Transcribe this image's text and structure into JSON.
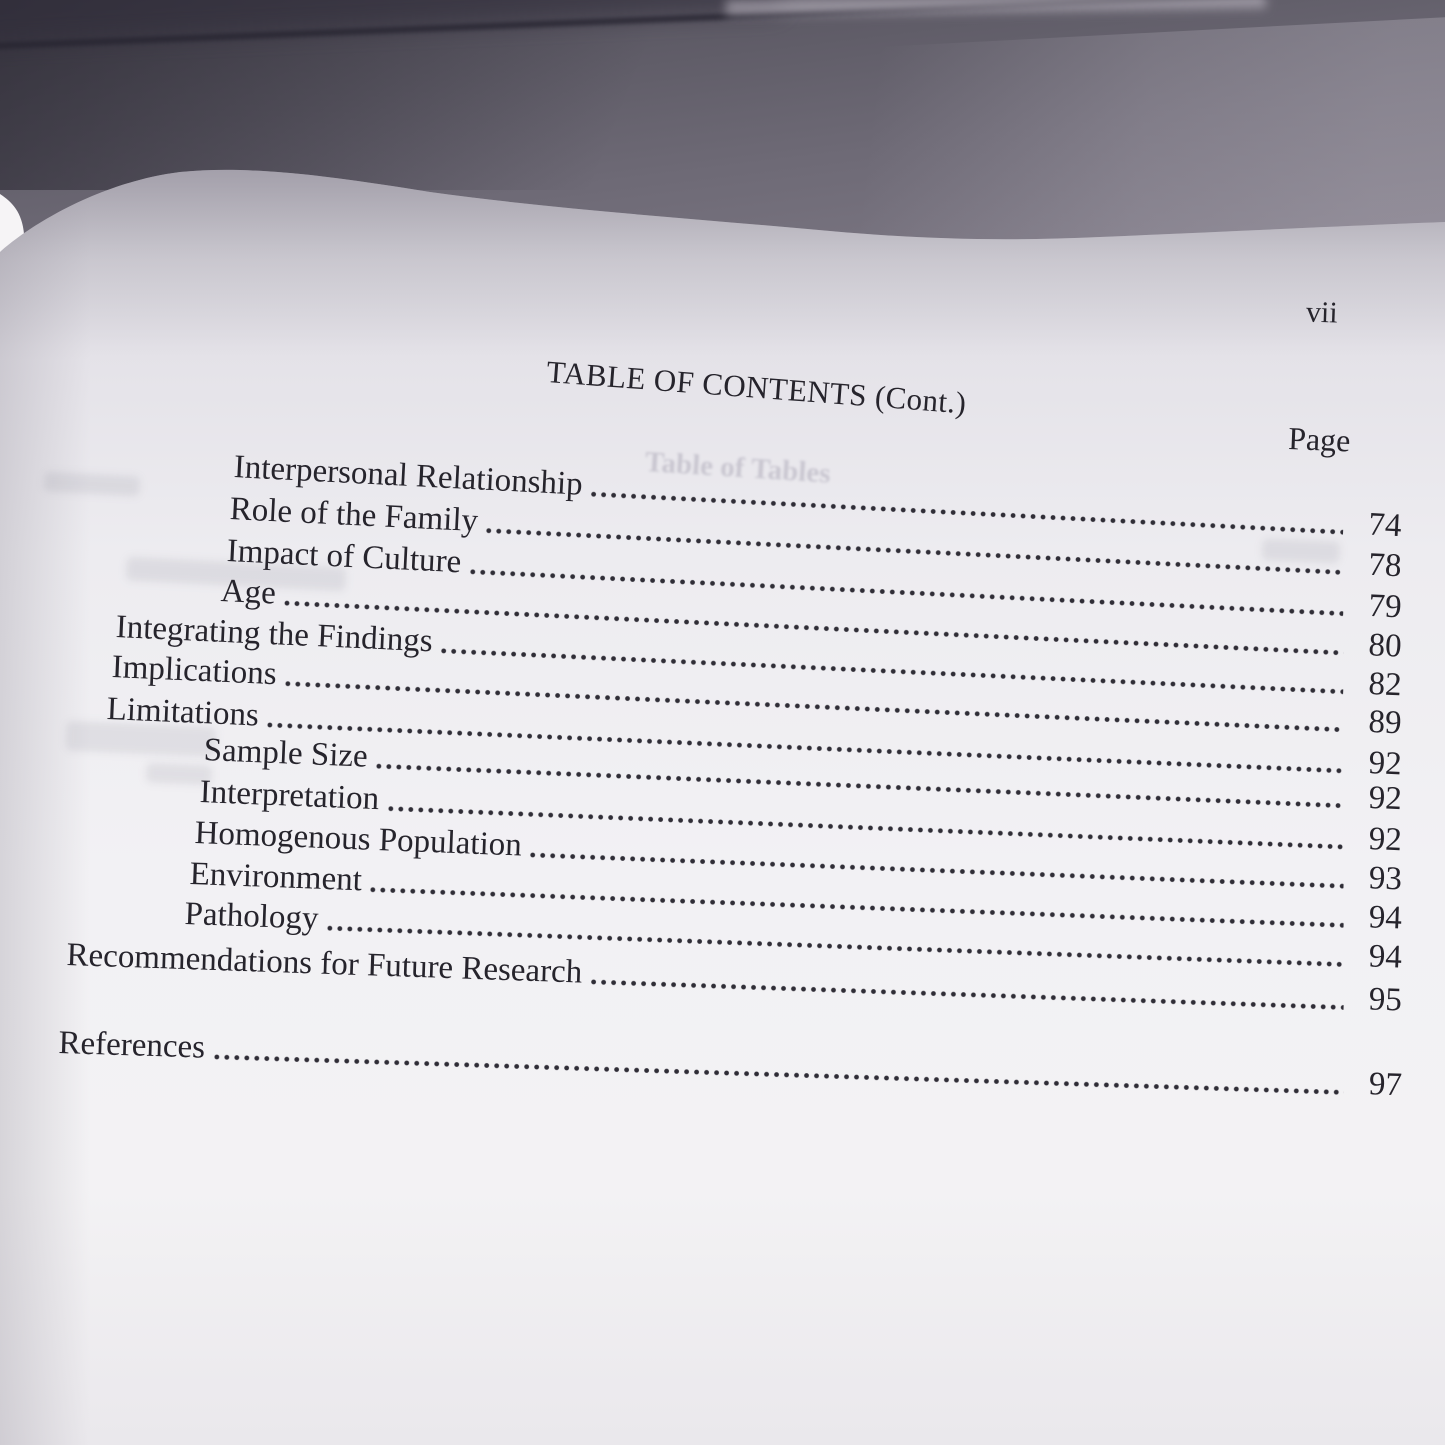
{
  "page": {
    "folio": "vii",
    "title": "TABLE OF CONTENTS (Cont.)",
    "column_header": "Page",
    "ghost_showthrough_text": "Table of Tables"
  },
  "toc": {
    "entries": [
      {
        "label": "Interpersonal Relationship",
        "page": "74",
        "indent": 2
      },
      {
        "label": "Role of the Family",
        "page": "78",
        "indent": 2
      },
      {
        "label": "Impact of Culture",
        "page": "79",
        "indent": 2
      },
      {
        "label": "Age",
        "page": "80",
        "indent": 2
      },
      {
        "label": "Integrating the Findings",
        "page": "82",
        "indent": 1
      },
      {
        "label": "Implications",
        "page": "89",
        "indent": 1
      },
      {
        "label": "Limitations",
        "page": "92",
        "indent": 1
      },
      {
        "label": "Sample Size",
        "page": "92",
        "indent": 2
      },
      {
        "label": "Interpretation",
        "page": "92",
        "indent": 2
      },
      {
        "label": "Homogenous Population",
        "page": "93",
        "indent": 2
      },
      {
        "label": "Environment",
        "page": "94",
        "indent": 2
      },
      {
        "label": "Pathology",
        "page": "94",
        "indent": 2
      },
      {
        "label": "Recommendations for Future Research",
        "page": "95",
        "indent": 0
      },
      {
        "label": "References",
        "page": "97",
        "indent": 0
      }
    ]
  },
  "colors": {
    "ink": "#26242c",
    "paper": "#f2f1f4",
    "backdrop_top": "#4f4c57",
    "backdrop_bottom": "#aaa5af",
    "leader_dot": "#2f2d36"
  }
}
